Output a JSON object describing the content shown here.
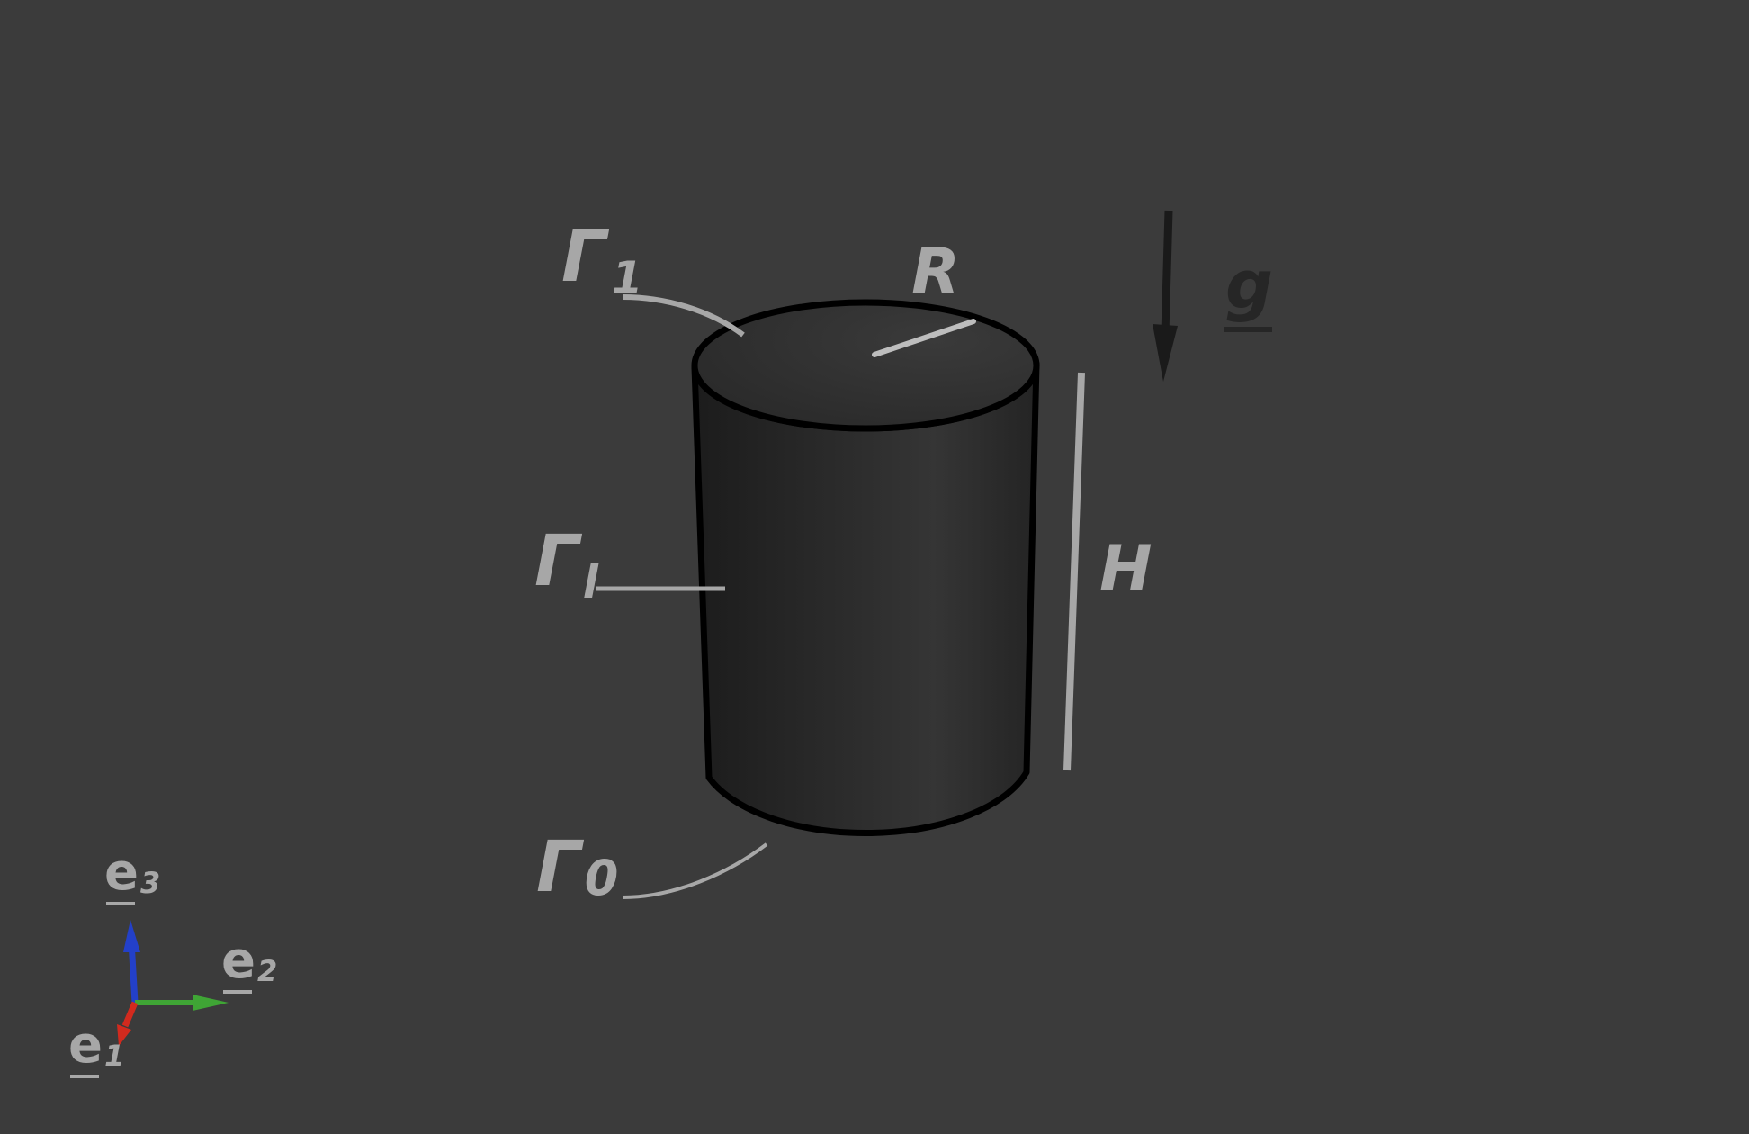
{
  "labels": {
    "gamma_top": {
      "base": "Γ",
      "sub": "1"
    },
    "gamma_lateral": {
      "base": "Γ",
      "sub": "l"
    },
    "gamma_bottom": {
      "base": "Γ",
      "sub": "0"
    },
    "radius": "R",
    "height": "H",
    "gravity": "g"
  },
  "axes": {
    "e1": {
      "base": "e",
      "sub": "1",
      "color": "#d22a1e"
    },
    "e2": {
      "base": "e",
      "sub": "2",
      "color": "#3fa535"
    },
    "e3": {
      "base": "e",
      "sub": "3",
      "color": "#2340c9"
    }
  },
  "colors": {
    "background": "#3b3b3b",
    "label": "#a7a7a7",
    "gravity_label": "#262626",
    "cylinder_body": "#2a2a2a",
    "cylinder_top": "#303030",
    "outline": "#000000"
  }
}
